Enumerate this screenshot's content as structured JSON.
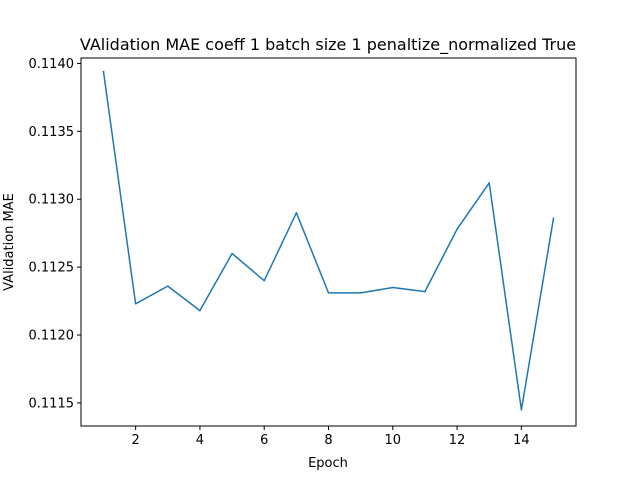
{
  "chart_data": {
    "type": "line",
    "title": "VAlidation MAE coeff 1 batch size 1 penaltize_normalized True",
    "xlabel": "Epoch",
    "ylabel": "VAlidation MAE",
    "xlim": [
      0.3,
      15.7
    ],
    "ylim": [
      0.11133,
      0.11404
    ],
    "xticks": [
      2,
      4,
      6,
      8,
      10,
      12,
      14
    ],
    "xtick_labels": [
      "2",
      "4",
      "6",
      "8",
      "10",
      "12",
      "14"
    ],
    "yticks": [
      0.1115,
      0.112,
      0.1125,
      0.113,
      0.1135,
      0.114
    ],
    "ytick_labels": [
      "0.1115",
      "0.1120",
      "0.1125",
      "0.1130",
      "0.1135",
      "0.1140"
    ],
    "grid": false,
    "series": [
      {
        "color": "#1f77b4",
        "x": [
          1,
          2,
          3,
          4,
          5,
          6,
          7,
          8,
          9,
          10,
          11,
          12,
          13,
          14,
          15
        ],
        "y": [
          0.11394,
          0.11223,
          0.11236,
          0.11218,
          0.1126,
          0.1124,
          0.1129,
          0.11231,
          0.11231,
          0.11235,
          0.11232,
          0.11278,
          0.11312,
          0.11145,
          0.11286
        ]
      }
    ]
  }
}
